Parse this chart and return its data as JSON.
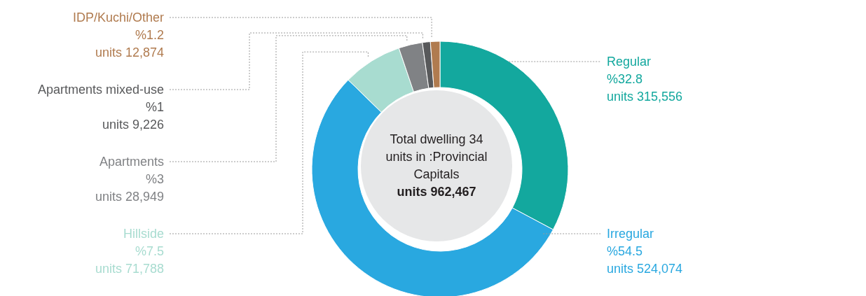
{
  "chart_data": {
    "type": "donut",
    "title": "Total dwelling 34 units in :Provincial Capitals",
    "subtitle": "units 962,467",
    "categories": [
      "Regular",
      "Irregular",
      "Hillside",
      "Apartments",
      "Apartments mixed-use",
      "IDP/Kuchi/Other"
    ],
    "values": [
      32.8,
      54.5,
      7.5,
      3,
      1,
      1.2
    ],
    "value_labels": [
      "%32.8",
      "%54.5",
      "%7.5",
      "%3",
      "%1",
      "%1.2"
    ],
    "colors": [
      "#13a89e",
      "#29a8e0",
      "#a8dcd0",
      "#808285",
      "#58595b",
      "#b07b4f"
    ],
    "annotations": [
      {
        "text": "units 315,556",
        "x": "Regular"
      },
      {
        "text": "units 524,074",
        "x": "Irregular"
      },
      {
        "text": "units 71,788",
        "x": "Hillside"
      },
      {
        "text": "units 28,949",
        "x": "Apartments"
      },
      {
        "text": "units 9,226",
        "x": "Apartments mixed-use"
      },
      {
        "text": "units 12,874",
        "x": "IDP/Kuchi/Other"
      }
    ],
    "legend": false
  }
}
